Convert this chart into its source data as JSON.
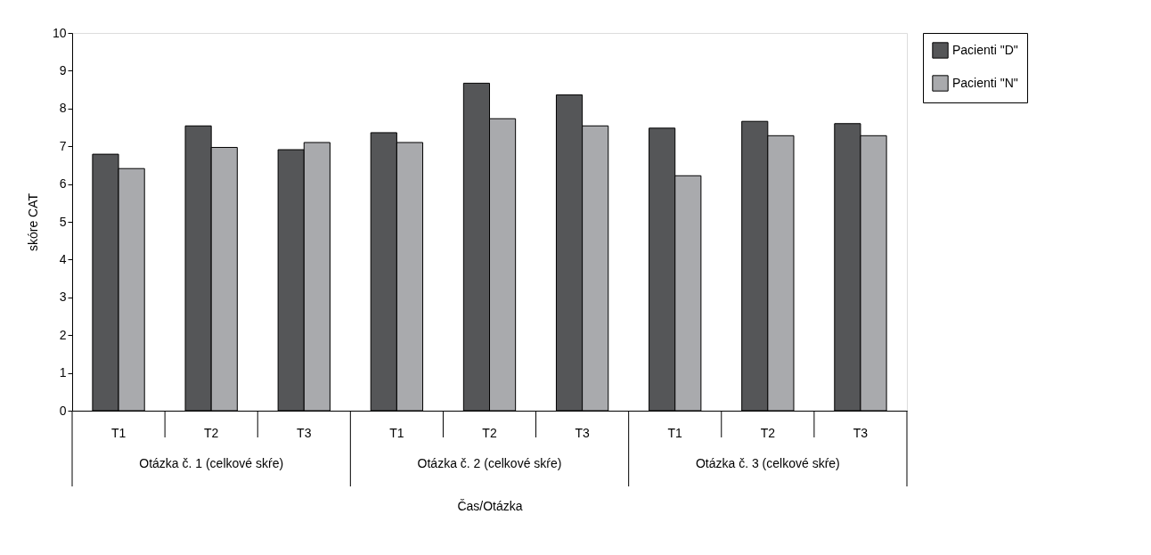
{
  "chart_data": {
    "type": "bar",
    "xlabel": "Čas/Otázka",
    "ylabel": "skóre CAT",
    "categories": [
      "T1",
      "T2",
      "T3",
      "T1",
      "T2",
      "T3",
      "T1",
      "T2",
      "T3"
    ],
    "series": [
      {
        "name": "Pacienti \"D\"",
        "color": "#555658",
        "values": [
          6.79,
          7.54,
          6.91,
          7.36,
          8.67,
          8.36,
          7.48,
          7.66,
          7.6
        ]
      },
      {
        "name": "Pacienti \"N\"",
        "color": "#a9aaad",
        "values": [
          6.41,
          6.97,
          7.1,
          7.1,
          7.73,
          7.54,
          6.22,
          7.28,
          7.28
        ]
      }
    ],
    "annotations": [
      "Otázka č. 1 (celkové skŕe)",
      "Otázka č. 2 (celkové skŕe)",
      "Otázka č. 3 (celkové skŕe)"
    ],
    "ylim": [
      0,
      10
    ],
    "yticks": [
      0,
      1,
      2,
      3,
      4,
      5,
      6,
      7,
      8,
      9,
      10
    ],
    "grid": false,
    "legend": "right"
  }
}
